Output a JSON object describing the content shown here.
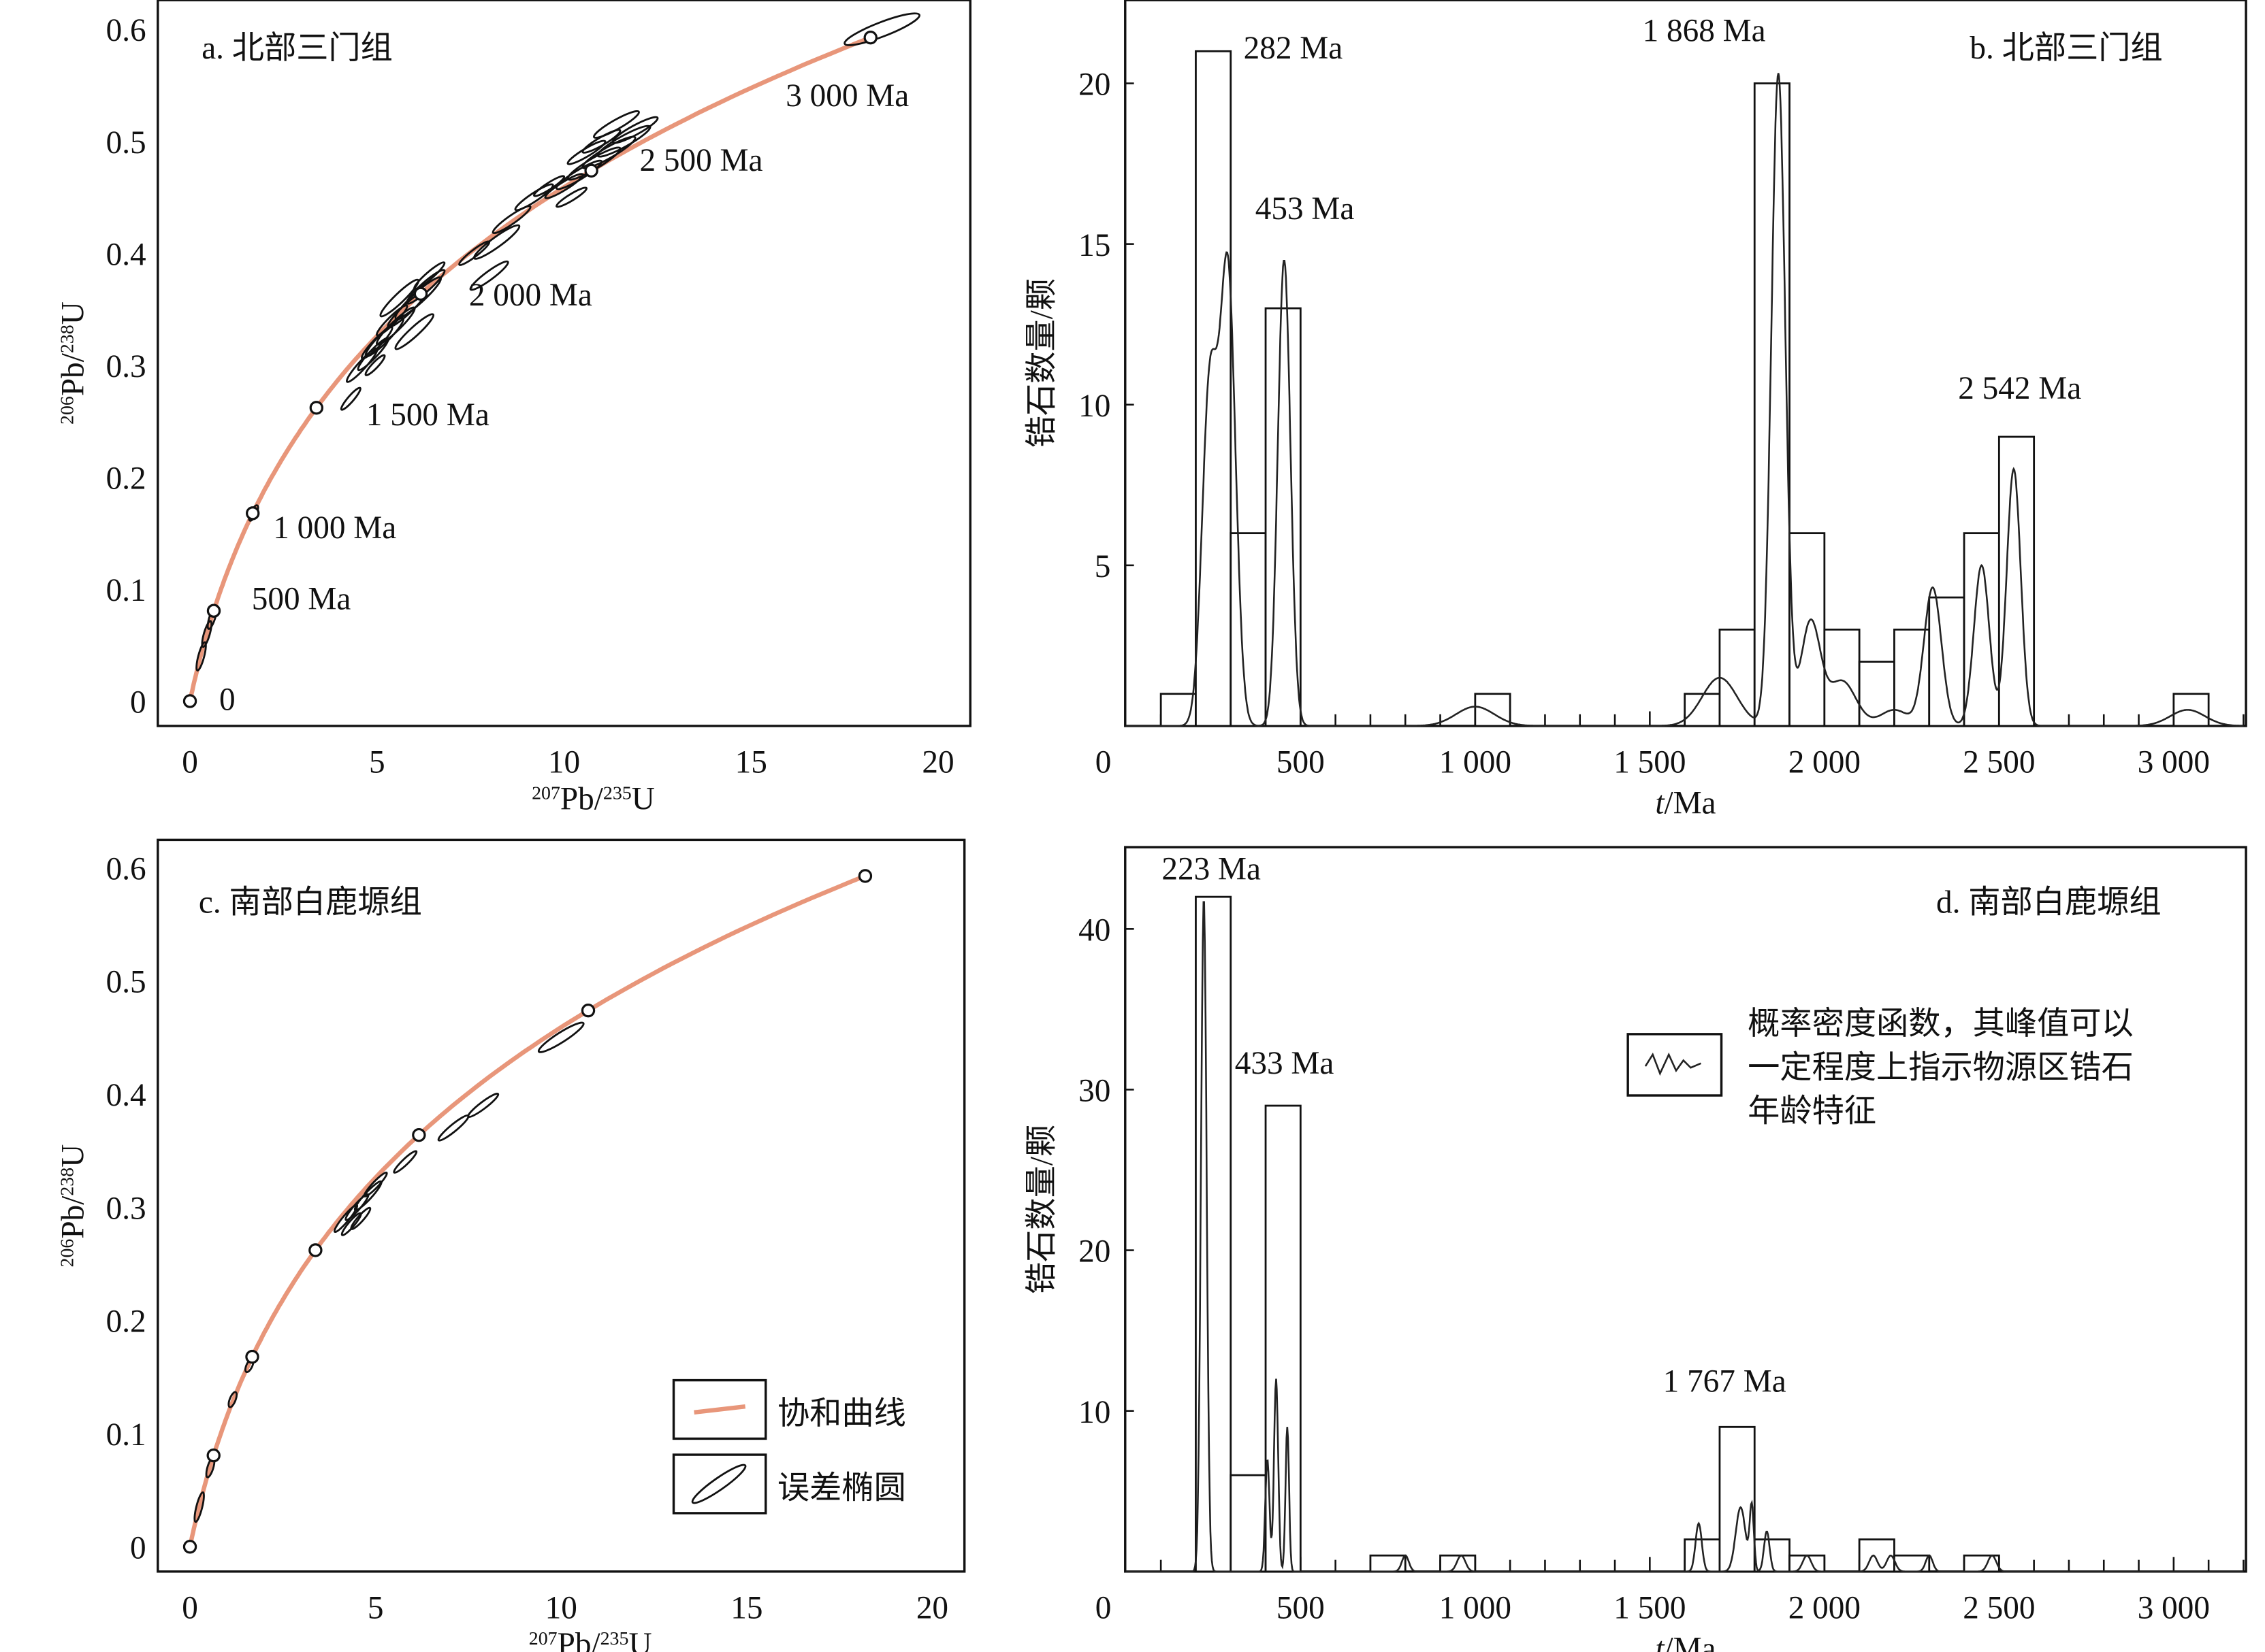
{
  "chart_data": [
    {
      "type": "scatter",
      "subtype": "concordia",
      "title": "a. 北部三门组",
      "xlabel": {
        "sup": "207",
        "base": "Pb/",
        "sup2": "235",
        "base2": "U"
      },
      "ylabel": {
        "sup": "206",
        "base": "Pb/",
        "sup2": "238",
        "base2": "U"
      },
      "xlim": [
        0,
        20
      ],
      "ylim": [
        0,
        0.6
      ],
      "xticks": [
        "0",
        "5",
        "10",
        "15",
        "20"
      ],
      "xtick_values": [
        0,
        5,
        10,
        15,
        20
      ],
      "yticks": [
        "0",
        "0.1",
        "0.2",
        "0.3",
        "0.4",
        "0.5",
        "0.6"
      ],
      "ytick_values": [
        0,
        0.1,
        0.2,
        0.3,
        0.4,
        0.5,
        0.6
      ],
      "concordia_markers_ma": [
        0,
        500,
        1000,
        1500,
        2000,
        2500,
        3000
      ],
      "marker_labels": [
        {
          "age": 0,
          "text": "0"
        },
        {
          "age": 500,
          "text": "500 Ma"
        },
        {
          "age": 1000,
          "text": "1 000 Ma"
        },
        {
          "age": 1500,
          "text": "1 500 Ma"
        },
        {
          "age": 2000,
          "text": "2 000 Ma"
        },
        {
          "age": 2500,
          "text": "2 500 Ma"
        },
        {
          "age": 3000,
          "text": "3 000 Ma"
        }
      ],
      "ellipses_x_y_halflen": [
        [
          0.3,
          0.04,
          0.1
        ],
        [
          0.45,
          0.06,
          0.1
        ],
        [
          0.6,
          0.075,
          0.1
        ],
        [
          1.7,
          0.168,
          0.1
        ],
        [
          4.6,
          0.3,
          0.4
        ],
        [
          4.9,
          0.31,
          0.4
        ],
        [
          5.2,
          0.325,
          0.5
        ],
        [
          5.5,
          0.335,
          0.5
        ],
        [
          5.8,
          0.35,
          0.5
        ],
        [
          6.1,
          0.36,
          0.6
        ],
        [
          6.3,
          0.37,
          0.5
        ],
        [
          5.0,
          0.32,
          0.4
        ],
        [
          5.4,
          0.34,
          0.4
        ],
        [
          6.0,
          0.33,
          0.5
        ],
        [
          5.6,
          0.36,
          0.5
        ],
        [
          6.4,
          0.38,
          0.4
        ],
        [
          4.3,
          0.27,
          0.25
        ],
        [
          4.95,
          0.3,
          0.25
        ],
        [
          7.6,
          0.4,
          0.4
        ],
        [
          8.2,
          0.41,
          0.6
        ],
        [
          8.6,
          0.43,
          0.5
        ],
        [
          9.2,
          0.45,
          0.5
        ],
        [
          9.6,
          0.46,
          0.4
        ],
        [
          10.0,
          0.46,
          0.5
        ],
        [
          10.4,
          0.47,
          0.6
        ],
        [
          10.8,
          0.48,
          0.7
        ],
        [
          11.2,
          0.49,
          0.7
        ],
        [
          11.6,
          0.5,
          0.7
        ],
        [
          11.9,
          0.51,
          0.6
        ],
        [
          10.6,
          0.49,
          0.5
        ],
        [
          11.0,
          0.5,
          0.5
        ],
        [
          11.4,
          0.515,
          0.6
        ],
        [
          8.0,
          0.38,
          0.5
        ],
        [
          10.2,
          0.45,
          0.4
        ],
        [
          18.5,
          0.6,
          1.0
        ]
      ]
    },
    {
      "type": "bar",
      "subtype": "histogram+pdf",
      "title": "b. 北部三门组",
      "xlabel": {
        "italic": "t",
        "rest": "/Ma"
      },
      "ylabel": "锆石数量/颗",
      "xlim": [
        0,
        3200
      ],
      "ylim": [
        0,
        22.5
      ],
      "xticks": [
        "0",
        "500",
        "1 000",
        "1 500",
        "2 000",
        "2 500",
        "3 000"
      ],
      "xtick_values": [
        0,
        500,
        1000,
        1500,
        2000,
        2500,
        3000
      ],
      "yticks": [
        "5",
        "10",
        "15",
        "20"
      ],
      "ytick_values": [
        5,
        10,
        15,
        20
      ],
      "bin_width_ma": 100,
      "bins": [
        [
          100,
          1
        ],
        [
          200,
          21
        ],
        [
          300,
          6
        ],
        [
          400,
          13
        ],
        [
          1000,
          1
        ],
        [
          1600,
          1
        ],
        [
          1700,
          3
        ],
        [
          1800,
          20
        ],
        [
          1900,
          6
        ],
        [
          2000,
          3
        ],
        [
          2100,
          2
        ],
        [
          2200,
          3
        ],
        [
          2300,
          4
        ],
        [
          2400,
          6
        ],
        [
          2500,
          9
        ],
        [
          3000,
          1
        ]
      ],
      "pdf_components_age_height_sigma": [
        [
          240,
          10.5,
          22
        ],
        [
          292,
          14,
          22
        ],
        [
          453,
          14.5,
          18
        ],
        [
          1000,
          0.6,
          55
        ],
        [
          1700,
          1.5,
          50
        ],
        [
          1868,
          20.3,
          20
        ],
        [
          1960,
          3.2,
          28
        ],
        [
          2050,
          1.4,
          40
        ],
        [
          2200,
          0.5,
          40
        ],
        [
          2310,
          4.3,
          25
        ],
        [
          2450,
          5,
          22
        ],
        [
          2542,
          8,
          20
        ],
        [
          3040,
          0.5,
          50
        ]
      ],
      "peak_labels": [
        {
          "age": 282,
          "text": "282 Ma"
        },
        {
          "age": 453,
          "text": "453 Ma"
        },
        {
          "age": 1868,
          "text": "1 868 Ma"
        },
        {
          "age": 2542,
          "text": "2 542 Ma"
        }
      ]
    },
    {
      "type": "scatter",
      "subtype": "concordia",
      "title": "c. 南部白鹿塬组",
      "xlabel": {
        "sup": "207",
        "base": "Pb/",
        "sup2": "235",
        "base2": "U"
      },
      "ylabel": {
        "sup": "206",
        "base": "Pb/",
        "sup2": "238",
        "base2": "U"
      },
      "xlim": [
        0,
        20
      ],
      "ylim": [
        0,
        0.6
      ],
      "xticks": [
        "0",
        "5",
        "10",
        "15",
        "20"
      ],
      "xtick_values": [
        0,
        5,
        10,
        15,
        20
      ],
      "yticks": [
        "0",
        "0.1",
        "0.2",
        "0.3",
        "0.4",
        "0.5",
        "0.6"
      ],
      "ytick_values": [
        0,
        0.1,
        0.2,
        0.3,
        0.4,
        0.5,
        0.6
      ],
      "concordia_markers_ma": [
        0,
        500,
        1000,
        1500,
        2000,
        2500,
        3000
      ],
      "marker_labels": [],
      "ellipses_x_y_halflen": [
        [
          0.25,
          0.035,
          0.1
        ],
        [
          1.15,
          0.13,
          0.08
        ],
        [
          1.6,
          0.16,
          0.08
        ],
        [
          0.55,
          0.07,
          0.08
        ],
        [
          4.2,
          0.29,
          0.3
        ],
        [
          4.5,
          0.3,
          0.3
        ],
        [
          4.8,
          0.31,
          0.35
        ],
        [
          5.0,
          0.32,
          0.3
        ],
        [
          4.6,
          0.29,
          0.25
        ],
        [
          4.35,
          0.285,
          0.25
        ],
        [
          5.8,
          0.34,
          0.3
        ],
        [
          7.1,
          0.37,
          0.4
        ],
        [
          7.9,
          0.39,
          0.4
        ],
        [
          10.0,
          0.45,
          0.6
        ]
      ],
      "legend": {
        "position": "bottom-right",
        "items": [
          "协和曲线",
          "误差椭圆"
        ]
      }
    },
    {
      "type": "bar",
      "subtype": "histogram+pdf",
      "title": "d. 南部白鹿塬组",
      "xlabel": {
        "italic": "t",
        "rest": "/Ma"
      },
      "ylabel": "锆石数量/颗",
      "xlim": [
        0,
        3200
      ],
      "ylim": [
        0,
        45
      ],
      "xticks": [
        "0",
        "500",
        "1 000",
        "1 500",
        "2 000",
        "2 500",
        "3 000"
      ],
      "xtick_values": [
        0,
        500,
        1000,
        1500,
        2000,
        2500,
        3000
      ],
      "yticks": [
        "10",
        "20",
        "30",
        "40"
      ],
      "ytick_values": [
        10,
        20,
        30,
        40
      ],
      "bin_width_ma": 100,
      "bins": [
        [
          200,
          42
        ],
        [
          300,
          6
        ],
        [
          400,
          29
        ],
        [
          700,
          1
        ],
        [
          900,
          1
        ],
        [
          1600,
          2
        ],
        [
          1700,
          9
        ],
        [
          1800,
          2
        ],
        [
          1900,
          1
        ],
        [
          2100,
          2
        ],
        [
          2200,
          1
        ],
        [
          2400,
          1
        ]
      ],
      "pdf_components_age_height_sigma": [
        [
          223,
          42,
          8
        ],
        [
          405,
          7,
          6
        ],
        [
          430,
          12,
          6
        ],
        [
          462,
          9,
          5
        ],
        [
          800,
          1,
          10
        ],
        [
          960,
          1,
          12
        ],
        [
          1640,
          3,
          9
        ],
        [
          1760,
          4,
          14
        ],
        [
          1792,
          4,
          6
        ],
        [
          1835,
          2.5,
          8
        ],
        [
          1950,
          1,
          12
        ],
        [
          2140,
          1,
          12
        ],
        [
          2190,
          1,
          12
        ],
        [
          2300,
          1,
          10
        ],
        [
          2480,
          1,
          12
        ]
      ],
      "peak_labels": [
        {
          "age": 223,
          "text": "223 Ma"
        },
        {
          "age": 433,
          "text": "433 Ma"
        },
        {
          "age": 1767,
          "text": "1 767 Ma"
        }
      ],
      "legend": {
        "position": "top-right",
        "lines": [
          "概率密度函数，其峰值可以",
          "一定程度上指示物源区锆石",
          "年龄特征"
        ]
      }
    }
  ]
}
